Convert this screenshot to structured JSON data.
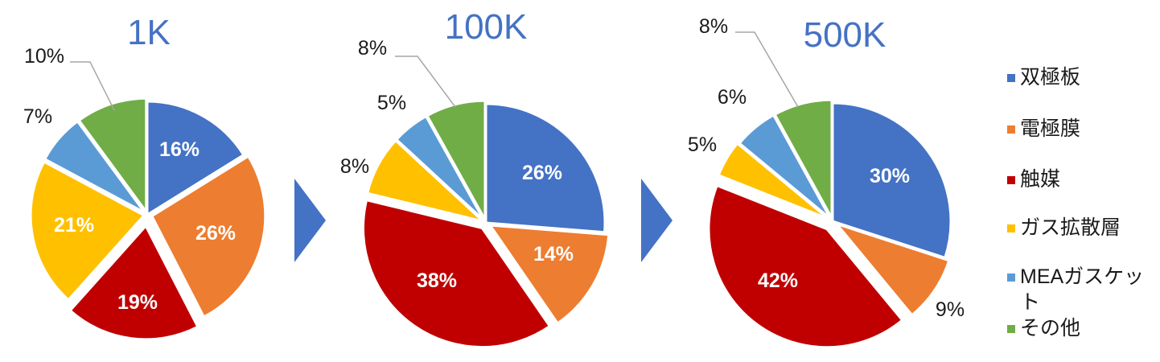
{
  "chart_data": [
    {
      "type": "pie",
      "title": "1K",
      "categories": [
        "双極板",
        "電極膜",
        "触媒",
        "ガス拡散層",
        "MEAガスケット",
        "その他"
      ],
      "values": [
        16,
        26,
        19,
        21,
        7,
        10
      ],
      "labels": [
        "16%",
        "26%",
        "19%",
        "21%",
        "7%",
        "10%"
      ]
    },
    {
      "type": "pie",
      "title": "100K",
      "categories": [
        "双極板",
        "電極膜",
        "触媒",
        "ガス拡散層",
        "MEAガスケット",
        "その他"
      ],
      "values": [
        26,
        14,
        38,
        8,
        5,
        8
      ],
      "labels": [
        "26%",
        "14%",
        "38%",
        "8%",
        "5%",
        "8%"
      ]
    },
    {
      "type": "pie",
      "title": "500K",
      "categories": [
        "双極板",
        "電極膜",
        "触媒",
        "ガス拡散層",
        "MEAガスケット",
        "その他"
      ],
      "values": [
        30,
        9,
        42,
        5,
        6,
        8
      ],
      "labels": [
        "30%",
        "9%",
        "42%",
        "5%",
        "6%",
        "8%"
      ]
    }
  ],
  "legend": {
    "placement": "right",
    "items": [
      {
        "label": "双極板",
        "color": "#4472C4"
      },
      {
        "label": "電極膜",
        "color": "#ED7D31"
      },
      {
        "label": "触媒",
        "color": "#C00000"
      },
      {
        "label": "ガス拡散層",
        "color": "#FFC000"
      },
      {
        "label": "MEAガスケット",
        "color": "#5B9BD5"
      },
      {
        "label": "その他",
        "color": "#70AD47"
      }
    ]
  },
  "colors": {
    "title": "#4472C4",
    "arrow": "#4472C4",
    "inside_label": "#ffffff",
    "outside_label": "#1a1a1a",
    "leader": "#a6a6a6"
  }
}
